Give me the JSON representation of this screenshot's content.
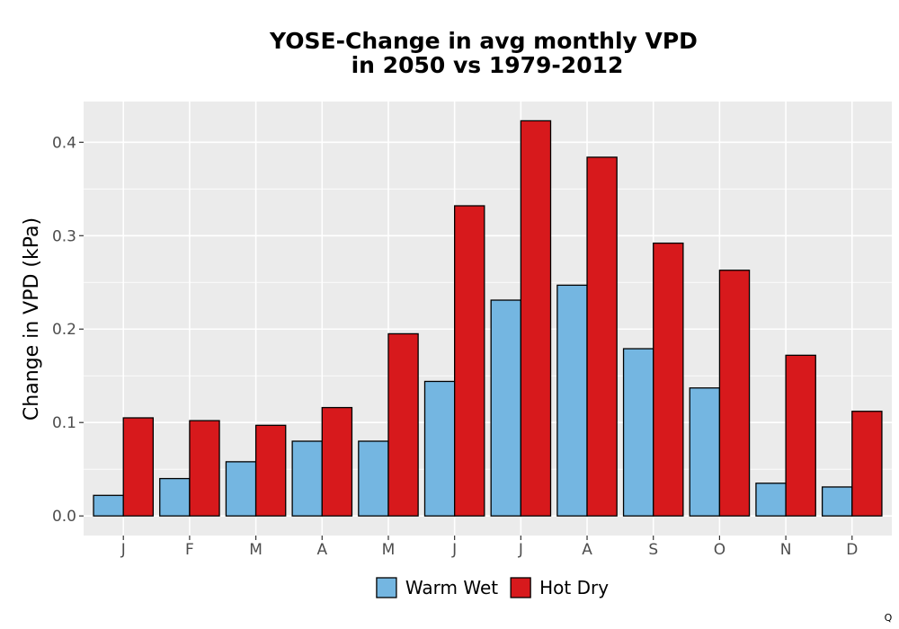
{
  "chart_data": {
    "type": "bar",
    "title_line1": "YOSE-Change in avg monthly VPD",
    "title_line2": "in 2050 vs 1979-2012",
    "xlabel": "",
    "ylabel": "Change in VPD (kPa)",
    "categories": [
      "J",
      "F",
      "M",
      "A",
      "M",
      "J",
      "J",
      "A",
      "S",
      "O",
      "N",
      "D"
    ],
    "series": [
      {
        "name": "Warm Wet",
        "color": "#74b6e1",
        "values": [
          0.022,
          0.04,
          0.058,
          0.08,
          0.08,
          0.144,
          0.231,
          0.247,
          0.179,
          0.137,
          0.035,
          0.031
        ]
      },
      {
        "name": "Hot Dry",
        "color": "#d7191c",
        "values": [
          0.105,
          0.102,
          0.097,
          0.116,
          0.195,
          0.332,
          0.423,
          0.384,
          0.292,
          0.263,
          0.172,
          0.112
        ]
      }
    ],
    "ylim": [
      -0.021,
      0.4436
    ],
    "yticks": [
      0.0,
      0.1,
      0.2,
      0.3,
      0.4
    ],
    "ytick_labels": [
      "0.0",
      "0.1",
      "0.2",
      "0.3",
      "0.4"
    ],
    "grid": true,
    "panel_background": "#ebebeb",
    "legend_position": "bottom"
  },
  "corner_mark": "Q"
}
